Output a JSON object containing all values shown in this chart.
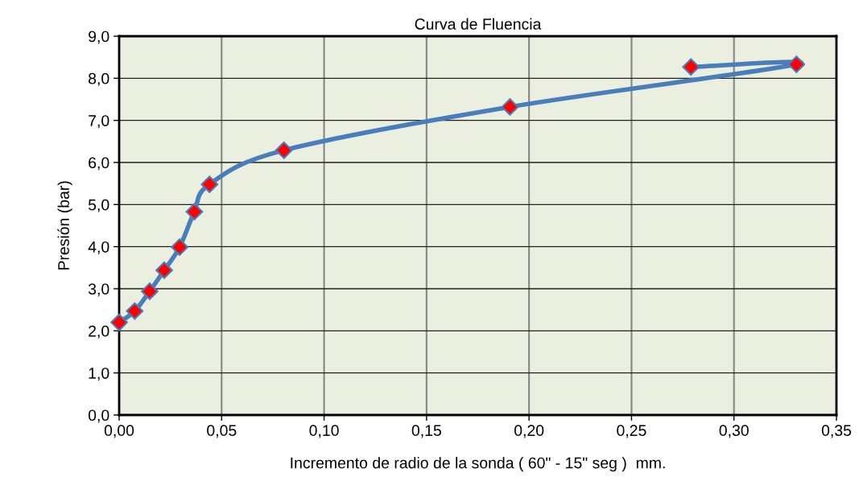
{
  "chart_data": {
    "type": "line",
    "title": "Curva de Fluencia",
    "xlabel": "Incremento de radio de la sonda ( 60\" - 15\" seg )  mm.",
    "ylabel": "Presión (bar)",
    "series": [
      {
        "color": "#4a7ebb",
        "colors": [
          "#ff0000",
          "#ff0000",
          "#ff0000",
          "#ff0000",
          "#ff0000",
          "#ff0000",
          "#ff0000",
          "#ff0000",
          "#ff0000",
          "#ff0000",
          "#ff0000"
        ],
        "x": [
          0.0,
          0.0076,
          0.0149,
          0.022,
          0.0295,
          0.0367,
          0.0441,
          0.0804,
          0.1907,
          0.3305,
          0.279
        ],
        "values": [
          2.2,
          2.47,
          2.94,
          3.44,
          3.99,
          4.83,
          5.48,
          6.29,
          7.32,
          8.33,
          8.27
        ]
      }
    ],
    "xlim": [
      0,
      0.35
    ],
    "ylim": [
      0,
      9
    ],
    "xticks": [
      {
        "value": 0,
        "label": "0,00"
      },
      {
        "value": 0.05,
        "label": "0,05"
      },
      {
        "value": 0.1,
        "label": "0,10"
      },
      {
        "value": 0.15,
        "label": "0,15"
      },
      {
        "value": 0.2,
        "label": "0,20"
      },
      {
        "value": 0.25,
        "label": "0,25"
      },
      {
        "value": 0.3,
        "label": "0,30"
      },
      {
        "value": 0.35,
        "label": "0,35"
      }
    ],
    "yticks": [
      {
        "value": 0,
        "label": "0,0"
      },
      {
        "value": 1,
        "label": "1,0"
      },
      {
        "value": 2,
        "label": "2,0"
      },
      {
        "value": 3,
        "label": "3,0"
      },
      {
        "value": 4,
        "label": "4,0"
      },
      {
        "value": 5,
        "label": "5,0"
      },
      {
        "value": 6,
        "label": "6,0"
      },
      {
        "value": 7,
        "label": "7,0"
      },
      {
        "value": 8,
        "label": "8,0"
      },
      {
        "value": 9,
        "label": "9,0"
      }
    ],
    "grid": true,
    "marker": "diamond",
    "line_style": "solid",
    "legend": false
  }
}
